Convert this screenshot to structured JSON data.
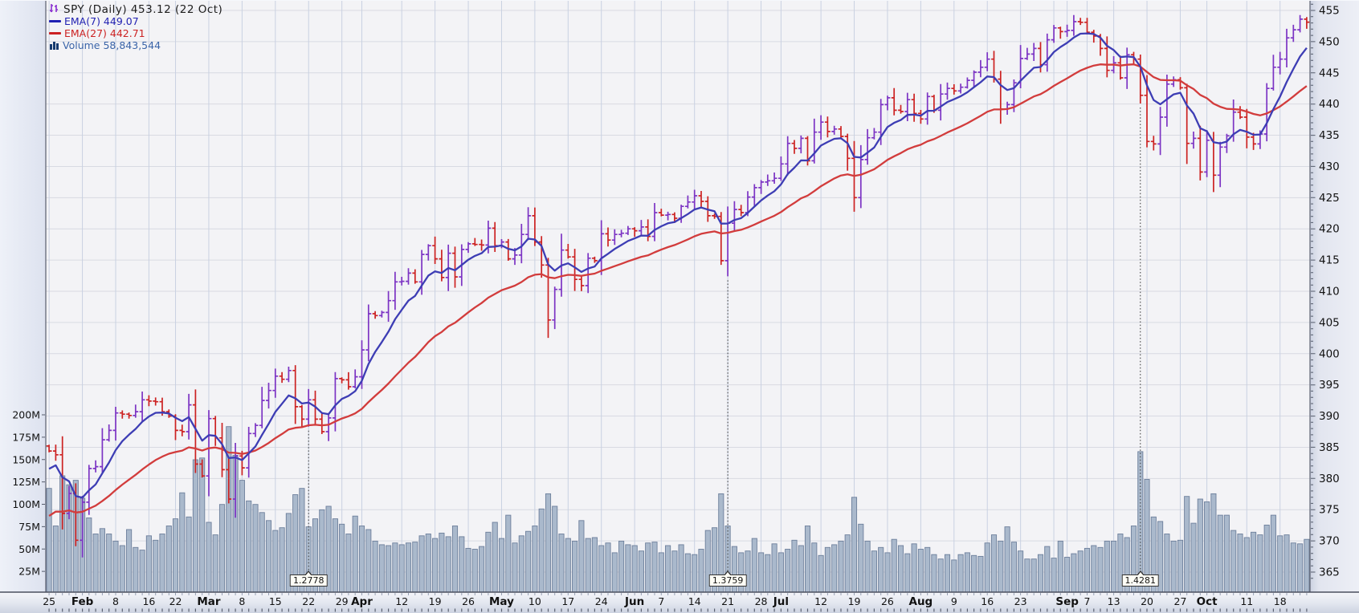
{
  "legend": {
    "symbol_line": "SPY (Daily) 453.12 (22 Oct)",
    "ema7_label": "EMA(7) 449.07",
    "ema27_label": "EMA(27) 442.71",
    "volume_label": "Volume 58,843,544"
  },
  "colors": {
    "up_bar": "#7c34c4",
    "down_bar": "#cc2222",
    "ema7_line": "#3d3db4",
    "ema27_line": "#d23c3c",
    "volume_fill": "#aab9cc",
    "volume_stroke": "#6d7f9b",
    "plot_bg": "#f3f3f6",
    "grid_h": "#d8dae2",
    "grid_v": "#c9d1e2",
    "axis_text": "#111111",
    "marker_line": "#444444",
    "legend_symbol_text": "#1c1c1c",
    "legend_ema7_text": "#2222b2",
    "legend_ema27_text": "#cc2222",
    "legend_volume_text": "#3a64a8"
  },
  "chart_data": {
    "type": "ohlc+volume",
    "symbol": "SPY",
    "timeframe": "Daily",
    "last_close": 453.12,
    "last_date_label": "22 Oct",
    "ema7_value": 449.07,
    "ema27_value": 442.71,
    "last_volume_text": "58,843,544",
    "price_axis": {
      "min": 365,
      "max": 455,
      "step": 5,
      "labels": [
        "455",
        "450",
        "445",
        "440",
        "435",
        "430",
        "425",
        "420",
        "415",
        "410",
        "405",
        "400",
        "395",
        "390",
        "385",
        "380",
        "375",
        "370",
        "365"
      ]
    },
    "volume_axis": {
      "labels": [
        "200M",
        "175M",
        "150M",
        "125M",
        "100M",
        "75M",
        "50M",
        "25M"
      ],
      "values_millions": [
        200,
        175,
        150,
        125,
        100,
        75,
        50,
        25
      ]
    },
    "x_ticks": [
      [
        0,
        "25",
        0
      ],
      [
        5,
        "Feb",
        1
      ],
      [
        10,
        "8",
        0
      ],
      [
        15,
        "16",
        0
      ],
      [
        19,
        "22",
        0
      ],
      [
        24,
        "Mar",
        1
      ],
      [
        29,
        "8",
        0
      ],
      [
        34,
        "15",
        0
      ],
      [
        39,
        "22",
        0
      ],
      [
        44,
        "29",
        0
      ],
      [
        47,
        "Apr",
        1
      ],
      [
        53,
        "12",
        0
      ],
      [
        58,
        "19",
        0
      ],
      [
        63,
        "26",
        0
      ],
      [
        68,
        "May",
        1
      ],
      [
        73,
        "10",
        0
      ],
      [
        78,
        "17",
        0
      ],
      [
        83,
        "24",
        0
      ],
      [
        88,
        "Jun",
        1
      ],
      [
        92,
        "7",
        0
      ],
      [
        97,
        "14",
        0
      ],
      [
        102,
        "21",
        0
      ],
      [
        107,
        "28",
        0
      ],
      [
        110,
        "Jul",
        1
      ],
      [
        116,
        "12",
        0
      ],
      [
        121,
        "19",
        0
      ],
      [
        126,
        "26",
        0
      ],
      [
        131,
        "Aug",
        1
      ],
      [
        136,
        "9",
        0
      ],
      [
        141,
        "16",
        0
      ],
      [
        146,
        "23",
        0
      ],
      [
        151,
        "",
        0
      ],
      [
        153,
        "Sep",
        1
      ],
      [
        156,
        "7",
        0
      ],
      [
        160,
        "13",
        0
      ],
      [
        165,
        "20",
        0
      ],
      [
        170,
        "27",
        0
      ],
      [
        174,
        "Oct",
        1
      ],
      [
        180,
        "11",
        0
      ],
      [
        185,
        "18",
        0
      ]
    ],
    "markers": [
      {
        "label": "1.2778",
        "day": 39
      },
      {
        "label": "1.3759",
        "day": 102
      },
      {
        "label": "1.4281",
        "day": 164
      }
    ],
    "ema7_seed": 380.6,
    "ema27_seed": 373.2,
    "first_open": 385.2,
    "closes": [
      384.4,
      383.8,
      374.4,
      377.6,
      370.1,
      376.2,
      381.6,
      381.9,
      386.2,
      387.7,
      390.5,
      390.3,
      390.1,
      390.7,
      392.6,
      392.4,
      392.3,
      390.7,
      390.0,
      387.7,
      387.5,
      391.8,
      382.3,
      380.4,
      389.6,
      386.5,
      381.4,
      376.7,
      383.6,
      381.7,
      387.2,
      388.5,
      392.5,
      394.1,
      396.4,
      395.9,
      397.3,
      391.5,
      389.5,
      392.6,
      389.5,
      387.5,
      389.7,
      396.0,
      395.8,
      394.7,
      396.3,
      400.6,
      406.4,
      406.1,
      406.6,
      408.5,
      411.5,
      411.6,
      412.9,
      411.5,
      415.9,
      417.3,
      415.2,
      412.2,
      416.1,
      412.3,
      416.7,
      417.6,
      417.5,
      417.4,
      420.1,
      417.3,
      417.9,
      415.2,
      415.8,
      419.1,
      422.1,
      417.9,
      414.2,
      405.4,
      410.3,
      416.6,
      415.5,
      411.9,
      410.9,
      415.3,
      414.9,
      419.2,
      418.2,
      419.1,
      419.3,
      420.0,
      419.7,
      420.3,
      418.8,
      422.6,
      422.2,
      422.3,
      421.7,
      423.6,
      424.3,
      425.3,
      424.4,
      422.1,
      422.0,
      414.9,
      420.9,
      423.1,
      422.6,
      425.1,
      426.6,
      427.5,
      427.7,
      428.1,
      430.4,
      433.7,
      432.9,
      434.5,
      430.9,
      435.5,
      437.1,
      435.6,
      436.0,
      434.8,
      431.3,
      425.0,
      431.1,
      434.6,
      435.5,
      439.9,
      441.0,
      439.0,
      438.8,
      440.7,
      438.5,
      437.6,
      441.2,
      439.0,
      441.6,
      442.5,
      442.1,
      442.7,
      443.8,
      445.1,
      445.9,
      447.2,
      444.0,
      439.2,
      439.9,
      443.4,
      447.3,
      448.0,
      448.9,
      446.3,
      450.3,
      452.2,
      451.6,
      451.8,
      453.2,
      453.1,
      451.5,
      450.9,
      448.9,
      445.4,
      446.6,
      444.2,
      447.9,
      447.2,
      441.4,
      434.0,
      433.6,
      437.9,
      443.2,
      443.9,
      442.6,
      433.7,
      434.5,
      429.1,
      434.2,
      428.6,
      433.1,
      434.9,
      438.7,
      437.9,
      434.7,
      433.6,
      435.2,
      442.5,
      445.9,
      447.2,
      450.6,
      451.9,
      453.6,
      453.12
    ],
    "volumes_millions": [
      116,
      74,
      130,
      120,
      125,
      105,
      83,
      65,
      71,
      65,
      57,
      52,
      70,
      50,
      47,
      63,
      58,
      65,
      74,
      82,
      111,
      84,
      148,
      150,
      78,
      64,
      98,
      185,
      153,
      125,
      102,
      98,
      89,
      80,
      69,
      72,
      88,
      109,
      116,
      73,
      82,
      92,
      96,
      82,
      76,
      65,
      85,
      74,
      70,
      57,
      53,
      52,
      55,
      53,
      55,
      56,
      63,
      65,
      60,
      66,
      62,
      74,
      62,
      49,
      48,
      51,
      67,
      78,
      60,
      86,
      55,
      63,
      68,
      74,
      93,
      110,
      96,
      65,
      60,
      57,
      80,
      60,
      61,
      52,
      55,
      44,
      57,
      53,
      52,
      46,
      55,
      56,
      44,
      52,
      46,
      53,
      43,
      42,
      48,
      69,
      72,
      110,
      74,
      51,
      44,
      46,
      60,
      44,
      42,
      54,
      44,
      48,
      58,
      52,
      74,
      55,
      41,
      50,
      53,
      57,
      64,
      106,
      76,
      57,
      46,
      50,
      44,
      59,
      52,
      43,
      54,
      48,
      50,
      42,
      37,
      42,
      36,
      42,
      44,
      41,
      40,
      55,
      64,
      57,
      73,
      56,
      46,
      37,
      37,
      42,
      51,
      38,
      57,
      39,
      43,
      46,
      49,
      52,
      50,
      57,
      57,
      65,
      61,
      74,
      157,
      126,
      84,
      79,
      65,
      57,
      58,
      107,
      77,
      104,
      101,
      110,
      86,
      86,
      69,
      65,
      61,
      67,
      64,
      75,
      86,
      63,
      64,
      55,
      54,
      59
    ]
  }
}
